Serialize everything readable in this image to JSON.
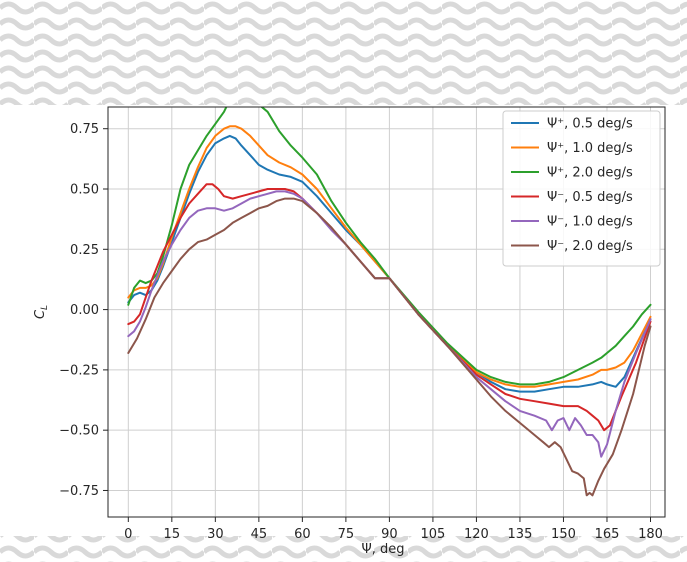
{
  "chart_data": {
    "type": "line",
    "xlabel": "Ψ, deg",
    "ylabel": "C_L",
    "xlim": [
      -7,
      185
    ],
    "ylim": [
      -0.86,
      0.84
    ],
    "x_ticks": [
      0,
      15,
      30,
      45,
      60,
      75,
      90,
      105,
      120,
      135,
      150,
      165,
      180
    ],
    "x_tick_labels": [
      "0",
      "15",
      "30",
      "45",
      "60",
      "75",
      "90",
      "105",
      "120",
      "135",
      "150",
      "165",
      "180"
    ],
    "y_ticks": [
      0.75,
      0.5,
      0.25,
      0.0,
      -0.25,
      -0.5,
      -0.75
    ],
    "y_tick_labels": [
      "0.75",
      "0.50",
      "0.25",
      "0.00",
      "−0.25",
      "−0.50",
      "−0.75"
    ],
    "grid": true,
    "legend_position": "top-right",
    "series": [
      {
        "name": "Ψ⁺, 0.5 deg/s",
        "color": "#1f77b4",
        "x": [
          0,
          2,
          4,
          6,
          8,
          10,
          12,
          15,
          18,
          21,
          24,
          27,
          30,
          33,
          35,
          37,
          39,
          42,
          45,
          48,
          52,
          56,
          60,
          65,
          70,
          75,
          80,
          85,
          90,
          100,
          110,
          120,
          125,
          130,
          135,
          140,
          145,
          150,
          155,
          160,
          163,
          165,
          168,
          171,
          174,
          177,
          180
        ],
        "y": [
          0.03,
          0.06,
          0.07,
          0.06,
          0.08,
          0.12,
          0.18,
          0.28,
          0.38,
          0.48,
          0.57,
          0.64,
          0.69,
          0.71,
          0.72,
          0.71,
          0.68,
          0.64,
          0.6,
          0.58,
          0.56,
          0.55,
          0.53,
          0.47,
          0.4,
          0.33,
          0.27,
          0.2,
          0.13,
          -0.02,
          -0.15,
          -0.26,
          -0.3,
          -0.33,
          -0.34,
          -0.34,
          -0.33,
          -0.32,
          -0.32,
          -0.31,
          -0.3,
          -0.31,
          -0.32,
          -0.28,
          -0.2,
          -0.12,
          -0.04
        ]
      },
      {
        "name": "Ψ⁺, 1.0 deg/s",
        "color": "#ff7f0e",
        "x": [
          0,
          2,
          4,
          6,
          8,
          10,
          12,
          15,
          18,
          21,
          24,
          27,
          30,
          33,
          35,
          37,
          39,
          42,
          45,
          48,
          52,
          56,
          60,
          65,
          70,
          75,
          80,
          85,
          90,
          100,
          110,
          120,
          125,
          130,
          135,
          140,
          145,
          150,
          155,
          160,
          163,
          165,
          168,
          171,
          174,
          177,
          180
        ],
        "y": [
          0.05,
          0.08,
          0.09,
          0.09,
          0.1,
          0.13,
          0.19,
          0.3,
          0.4,
          0.5,
          0.59,
          0.67,
          0.72,
          0.75,
          0.76,
          0.76,
          0.75,
          0.72,
          0.68,
          0.64,
          0.61,
          0.59,
          0.56,
          0.5,
          0.42,
          0.34,
          0.27,
          0.2,
          0.13,
          -0.02,
          -0.15,
          -0.26,
          -0.29,
          -0.31,
          -0.32,
          -0.32,
          -0.31,
          -0.3,
          -0.29,
          -0.27,
          -0.25,
          -0.25,
          -0.24,
          -0.22,
          -0.17,
          -0.1,
          -0.03
        ]
      },
      {
        "name": "Ψ⁺, 2.0 deg/s",
        "color": "#2ca02c",
        "x": [
          0,
          2,
          4,
          6,
          8,
          10,
          12,
          15,
          18,
          21,
          24,
          27,
          30,
          33,
          35,
          37,
          39,
          42,
          45,
          48,
          52,
          56,
          60,
          65,
          70,
          75,
          80,
          85,
          90,
          100,
          110,
          120,
          125,
          130,
          135,
          140,
          145,
          150,
          155,
          160,
          163,
          165,
          168,
          171,
          174,
          177,
          180
        ],
        "y": [
          0.02,
          0.09,
          0.12,
          0.11,
          0.12,
          0.15,
          0.22,
          0.35,
          0.5,
          0.6,
          0.66,
          0.72,
          0.77,
          0.82,
          0.87,
          0.91,
          0.9,
          0.86,
          0.85,
          0.82,
          0.74,
          0.68,
          0.63,
          0.56,
          0.45,
          0.36,
          0.28,
          0.21,
          0.13,
          -0.01,
          -0.14,
          -0.25,
          -0.28,
          -0.3,
          -0.31,
          -0.31,
          -0.3,
          -0.28,
          -0.25,
          -0.22,
          -0.2,
          -0.18,
          -0.15,
          -0.11,
          -0.07,
          -0.02,
          0.02
        ]
      },
      {
        "name": "Ψ⁻, 0.5 deg/s",
        "color": "#d62728",
        "x": [
          0,
          2,
          4,
          6,
          8,
          10,
          12,
          15,
          18,
          21,
          24,
          27,
          29,
          31,
          33,
          36,
          39,
          42,
          45,
          48,
          51,
          54,
          57,
          60,
          65,
          70,
          75,
          80,
          85,
          90,
          100,
          110,
          120,
          125,
          130,
          135,
          140,
          145,
          150,
          155,
          158,
          160,
          162,
          164,
          166,
          170,
          175,
          180
        ],
        "y": [
          -0.06,
          -0.05,
          -0.02,
          0.05,
          0.12,
          0.18,
          0.24,
          0.31,
          0.38,
          0.44,
          0.48,
          0.52,
          0.52,
          0.5,
          0.47,
          0.46,
          0.47,
          0.48,
          0.49,
          0.5,
          0.5,
          0.5,
          0.49,
          0.46,
          0.4,
          0.34,
          0.27,
          0.2,
          0.13,
          0.13,
          -0.02,
          -0.15,
          -0.27,
          -0.31,
          -0.35,
          -0.37,
          -0.38,
          -0.39,
          -0.4,
          -0.4,
          -0.42,
          -0.44,
          -0.46,
          -0.5,
          -0.48,
          -0.36,
          -0.22,
          -0.05
        ]
      },
      {
        "name": "Ψ⁻, 1.0 deg/s",
        "color": "#9467bd",
        "x": [
          0,
          2,
          4,
          6,
          8,
          10,
          12,
          15,
          18,
          21,
          24,
          27,
          30,
          33,
          36,
          39,
          42,
          45,
          48,
          51,
          54,
          57,
          60,
          65,
          70,
          75,
          80,
          85,
          90,
          100,
          110,
          120,
          125,
          130,
          135,
          140,
          144,
          146,
          148,
          150,
          152,
          154,
          156,
          158,
          160,
          162,
          163,
          165,
          168,
          171,
          175,
          180
        ],
        "y": [
          -0.11,
          -0.09,
          -0.05,
          0.01,
          0.08,
          0.14,
          0.2,
          0.27,
          0.33,
          0.38,
          0.41,
          0.42,
          0.42,
          0.41,
          0.42,
          0.44,
          0.46,
          0.47,
          0.48,
          0.49,
          0.49,
          0.48,
          0.46,
          0.4,
          0.33,
          0.27,
          0.2,
          0.13,
          0.13,
          -0.02,
          -0.15,
          -0.28,
          -0.33,
          -0.38,
          -0.42,
          -0.44,
          -0.46,
          -0.5,
          -0.46,
          -0.45,
          -0.5,
          -0.45,
          -0.48,
          -0.52,
          -0.52,
          -0.55,
          -0.61,
          -0.56,
          -0.42,
          -0.3,
          -0.18,
          -0.04
        ]
      },
      {
        "name": "Ψ⁻, 2.0 deg/s",
        "color": "#8c564b",
        "x": [
          0,
          3,
          6,
          9,
          12,
          15,
          18,
          21,
          24,
          27,
          30,
          33,
          36,
          39,
          42,
          45,
          48,
          51,
          54,
          57,
          60,
          65,
          70,
          75,
          80,
          85,
          90,
          100,
          110,
          120,
          125,
          130,
          135,
          140,
          143,
          145,
          147,
          149,
          151,
          153,
          155,
          157,
          158,
          159,
          160,
          162,
          164,
          167,
          170,
          174,
          178,
          180
        ],
        "y": [
          -0.18,
          -0.12,
          -0.04,
          0.05,
          0.11,
          0.16,
          0.21,
          0.25,
          0.28,
          0.29,
          0.31,
          0.33,
          0.36,
          0.38,
          0.4,
          0.42,
          0.43,
          0.45,
          0.46,
          0.46,
          0.45,
          0.4,
          0.34,
          0.27,
          0.2,
          0.13,
          0.13,
          -0.02,
          -0.15,
          -0.29,
          -0.36,
          -0.42,
          -0.47,
          -0.52,
          -0.55,
          -0.57,
          -0.55,
          -0.57,
          -0.62,
          -0.67,
          -0.68,
          -0.7,
          -0.77,
          -0.76,
          -0.77,
          -0.71,
          -0.66,
          -0.6,
          -0.5,
          -0.35,
          -0.15,
          -0.07
        ]
      }
    ]
  }
}
